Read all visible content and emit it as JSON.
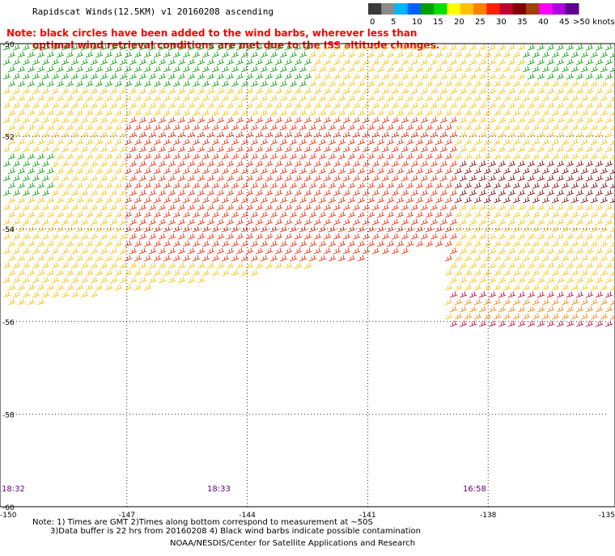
{
  "header": {
    "title": "Rapidscat Winds(12.5KM) v1 20160208 ascending"
  },
  "note": {
    "line1": "Note: black circles have been added to the wind barbs, wherever less than",
    "line2": "optimal wind retrieval conditions are met due to the ISS altitude changes."
  },
  "colorbar": {
    "labels": [
      "0",
      "5",
      "10",
      "15",
      "20",
      "25",
      "30",
      "35",
      "40",
      "45",
      ">50 knots"
    ],
    "colors": [
      "#3a3a3a",
      "#8a8a8a",
      "#00b4ff",
      "#0060ff",
      "#00a000",
      "#00e000",
      "#ffff00",
      "#ffc000",
      "#ff8000",
      "#ff2000",
      "#c00030",
      "#800000",
      "#a04000",
      "#ff00ff",
      "#b000e0",
      "#600090"
    ]
  },
  "axes": {
    "lat_labels": [
      "-50",
      "-52",
      "-54",
      "-56",
      "-58",
      "-60"
    ],
    "lon_labels": [
      "-150",
      "-147",
      "-144",
      "-141",
      "-138",
      "-135"
    ]
  },
  "times": [
    "18:32",
    "18:33",
    "16:58"
  ],
  "footer": {
    "line1": "Note: 1) Times are GMT 2)Times along bottom correspond to measurement at ~50S",
    "line2": "3)Data buffer is 22 hrs from 20160208 4) Black wind barbs indicate possible contamination",
    "line3": "NOAA/NESDIS/Center for Satellite Applications and Research"
  }
}
